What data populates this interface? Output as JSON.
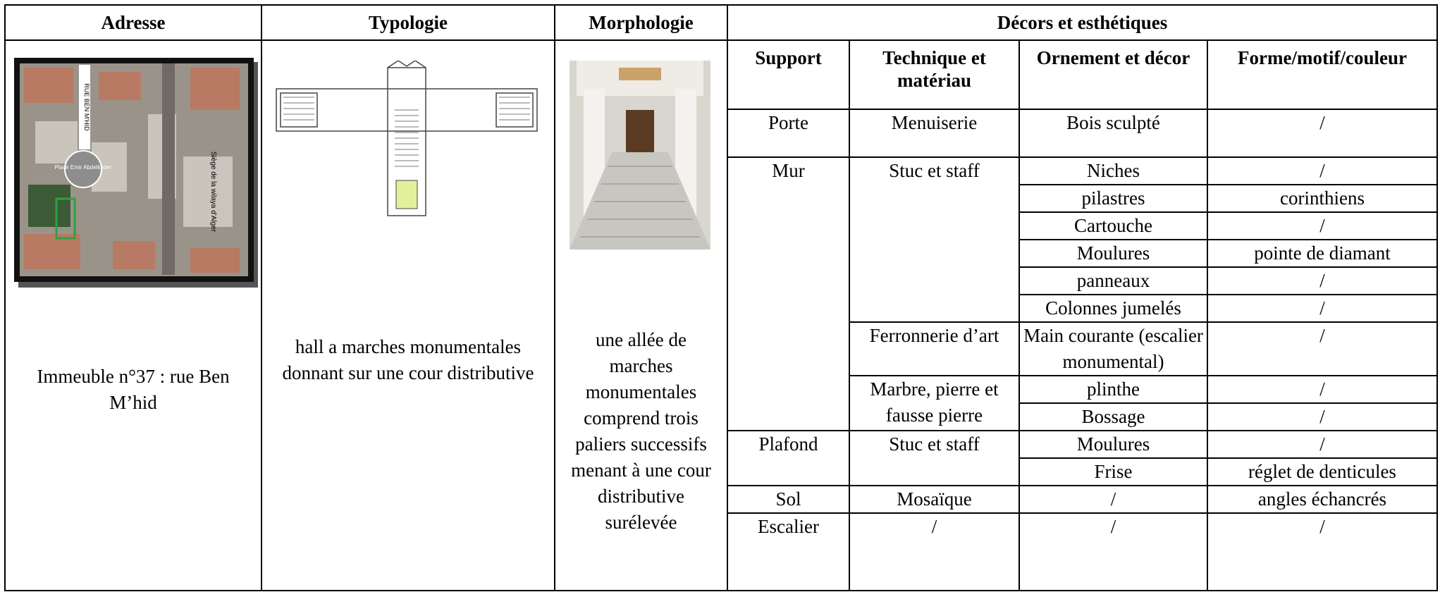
{
  "table": {
    "header": [
      "Adresse",
      "Typologie",
      "Morphologie",
      "Décors et esthétiques"
    ],
    "subheader": [
      "Support",
      "Technique et matériau",
      "Ornement et décor",
      "Forme/motif/couleur"
    ],
    "adresse": "Immeuble n°37 : rue Ben M’hid",
    "map_labels": [
      "RUE BEN M'HID",
      "Place Emir Abdelkader",
      "Siège de la wilaya d'Alger"
    ],
    "typologie": "hall a  marches monumentales donnant sur une cour distributive",
    "morphologie": "une allée de marches monumentales comprend trois paliers successifs menant à une cour distributive surélevée",
    "supports": [
      {
        "support": "Porte",
        "techniques": [
          {
            "technique": "Menuiserie",
            "items": [
              [
                "Bois sculpté",
                "/"
              ]
            ]
          }
        ]
      },
      {
        "support": "Mur",
        "techniques": [
          {
            "technique": "Stuc et staff",
            "items": [
              [
                "Niches",
                "/"
              ],
              [
                "pilastres",
                "corinthiens"
              ],
              [
                "Cartouche",
                "/"
              ],
              [
                "Moulures",
                "pointe de diamant"
              ],
              [
                "panneaux",
                "/"
              ],
              [
                "Colonnes jumelés",
                "/"
              ]
            ]
          },
          {
            "technique": "Ferronnerie d’art",
            "items": [
              [
                "Main courante (escalier monumental)",
                "/"
              ]
            ]
          },
          {
            "technique": "Marbre, pierre et fausse pierre",
            "items": [
              [
                "plinthe",
                "/"
              ],
              [
                "Bossage",
                "/"
              ]
            ]
          }
        ]
      },
      {
        "support": "Plafond",
        "techniques": [
          {
            "technique": "Stuc et staff",
            "items": [
              [
                "Moulures",
                "/"
              ],
              [
                "Frise",
                "réglet de denticules"
              ]
            ]
          }
        ]
      },
      {
        "support": "Sol",
        "techniques": [
          {
            "technique": "Mosaïque",
            "items": [
              [
                "/",
                "angles échancrés"
              ]
            ]
          }
        ]
      },
      {
        "support": "Escalier",
        "techniques": [
          {
            "technique": "/",
            "items": [
              [
                "/",
                "/"
              ]
            ]
          }
        ]
      }
    ]
  }
}
